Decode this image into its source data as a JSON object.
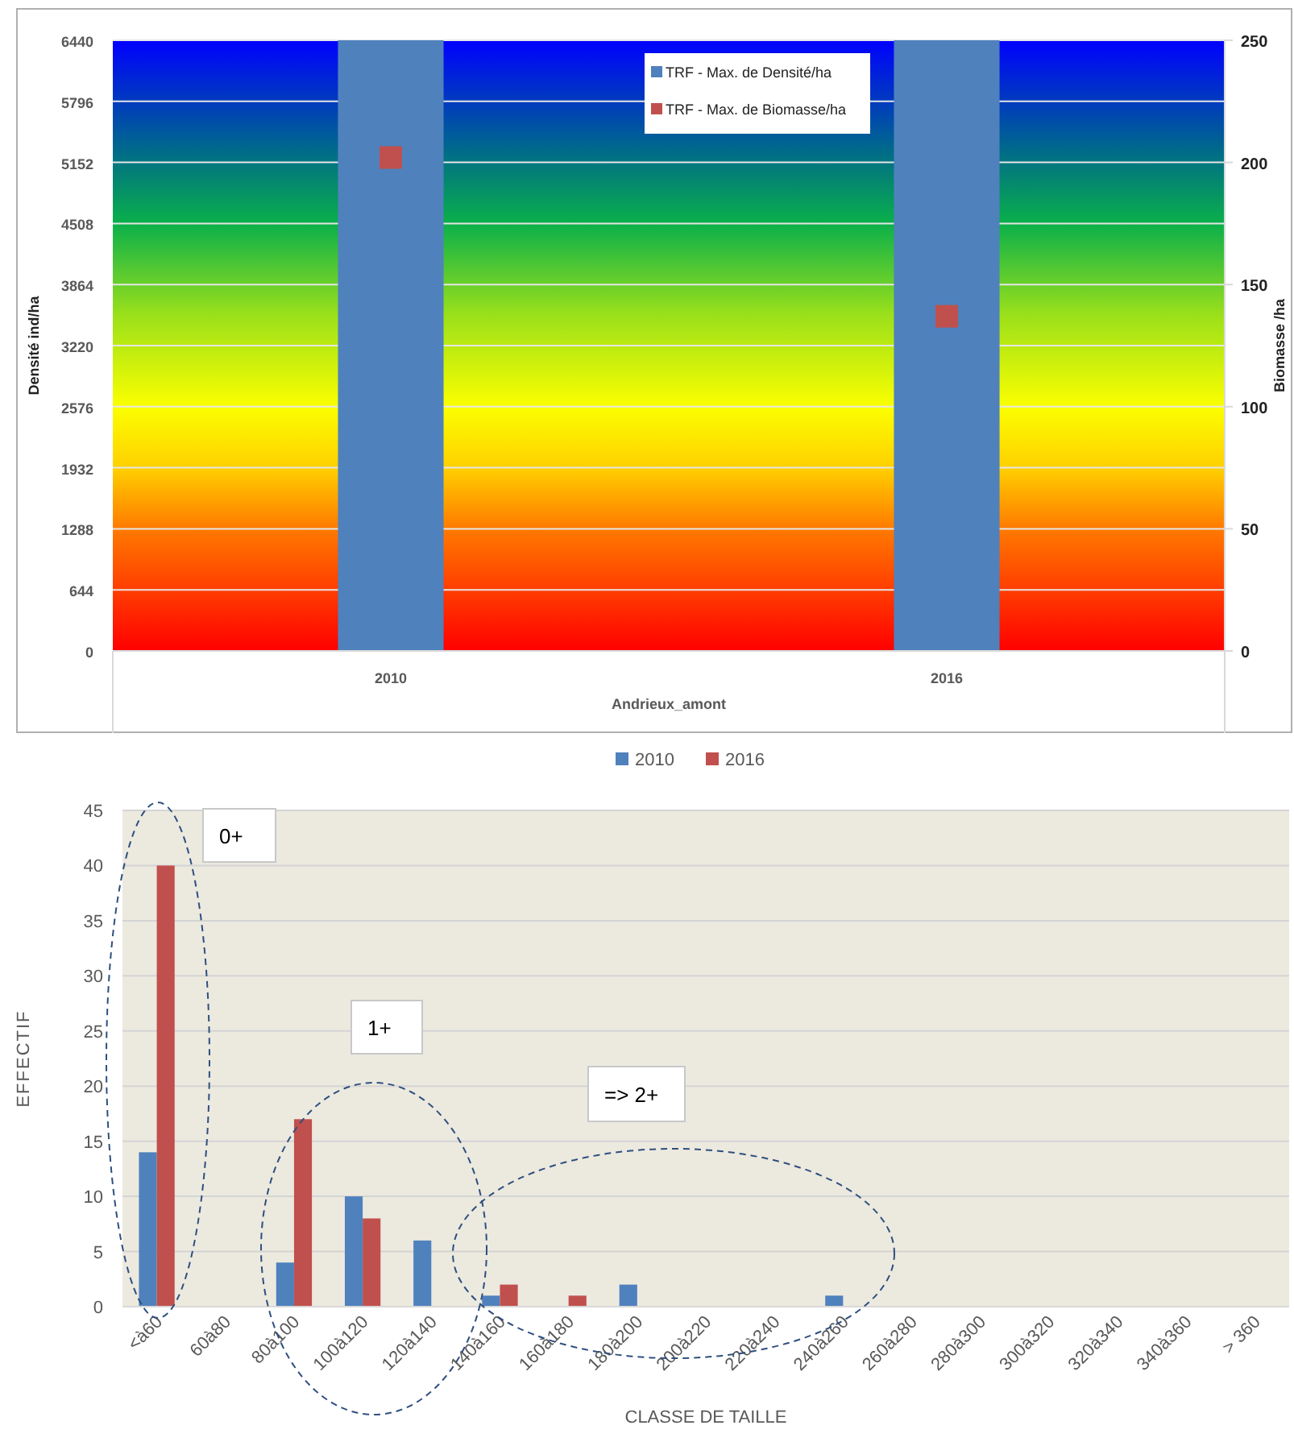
{
  "chart_data": [
    {
      "type": "bar",
      "xlabel": "Andrieux_amont",
      "ylabel": "Densité ind/ha",
      "y2label": "Biomasse /ha",
      "categories": [
        "2010",
        "2016"
      ],
      "series": [
        {
          "name": "TRF - Max. de Densité/ha",
          "color": "#4f81bd",
          "values": [
            6440,
            6440
          ]
        },
        {
          "name": "TRF - Max. de Biomasse/ha",
          "color": "#c0504d",
          "type": "scatter",
          "axis": "y2",
          "values": [
            202,
            137
          ]
        }
      ],
      "ylim": [
        0,
        6440
      ],
      "yticks": [
        0,
        644,
        1288,
        1932,
        2576,
        3220,
        3864,
        4508,
        5152,
        5796,
        6440
      ],
      "y2lim": [
        0,
        250
      ],
      "y2ticks": [
        0,
        50,
        100,
        150,
        200,
        250
      ],
      "grid": "y",
      "legend": "top",
      "marker": "square"
    },
    {
      "type": "bar",
      "xlabel": "CLASSE DE TAILLE",
      "ylabel": "EFFECTIF",
      "categories": [
        "<à60",
        "60à80",
        "80à100",
        "100à120",
        "120à140",
        "140à160",
        "160à180",
        "180à200",
        "200à220",
        "220à240",
        "240à260",
        "260à280",
        "280à300",
        "300à320",
        "320à340",
        "340à360",
        "> 360"
      ],
      "series": [
        {
          "name": "2010",
          "color": "#4f81bd",
          "values": [
            14,
            0,
            4,
            10,
            6,
            1,
            0,
            2,
            0,
            0,
            1,
            0,
            0,
            0,
            0,
            0,
            0
          ]
        },
        {
          "name": "2016",
          "color": "#c0504d",
          "values": [
            40,
            0,
            17,
            8,
            0,
            2,
            1,
            0,
            0,
            0,
            0,
            0,
            0,
            0,
            0,
            0,
            0
          ]
        }
      ],
      "ylim": [
        0,
        45
      ],
      "yticks": [
        0,
        5,
        10,
        15,
        20,
        25,
        30,
        35,
        40,
        45
      ],
      "grid": "y",
      "legend": "top",
      "annotations": [
        "0+",
        "1+",
        "=> 2+"
      ]
    }
  ]
}
